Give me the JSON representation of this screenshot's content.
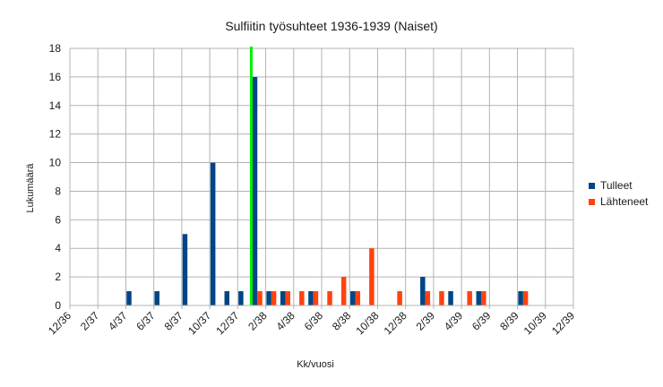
{
  "chart_data": {
    "type": "bar",
    "title": "Sulfiitin työsuhteet 1936-1939 (Naiset)",
    "xlabel": "Kk/vuosi",
    "ylabel": "Lukumäärä",
    "ylim": [
      0,
      18
    ],
    "yticks": [
      0,
      2,
      4,
      6,
      8,
      10,
      12,
      14,
      16,
      18
    ],
    "grid": true,
    "legend_position": "right",
    "x_tick_labels": [
      "12/36",
      "2/37",
      "4/37",
      "6/37",
      "8/37",
      "10/37",
      "12/37",
      "2/38",
      "4/38",
      "6/38",
      "8/38",
      "10/38",
      "12/38",
      "2/39",
      "4/39",
      "6/39",
      "8/39",
      "10/39",
      "12/39"
    ],
    "categories": [
      "12/36",
      "1/37",
      "2/37",
      "3/37",
      "4/37",
      "5/37",
      "6/37",
      "7/37",
      "8/37",
      "9/37",
      "10/37",
      "11/37",
      "12/37",
      "1/38",
      "2/38",
      "3/38",
      "4/38",
      "5/38",
      "6/38",
      "7/38",
      "8/38",
      "9/38",
      "10/38",
      "11/38",
      "12/38",
      "1/39",
      "2/39",
      "3/39",
      "4/39",
      "5/39",
      "6/39",
      "7/39",
      "8/39",
      "9/39",
      "10/39",
      "11/39",
      "12/39"
    ],
    "series": [
      {
        "name": "Tulleet",
        "color": "#004586",
        "values": [
          0,
          0,
          0,
          0,
          1,
          0,
          1,
          0,
          5,
          0,
          10,
          1,
          1,
          16,
          1,
          1,
          0,
          1,
          0,
          0,
          1,
          0,
          0,
          0,
          0,
          2,
          0,
          1,
          0,
          1,
          0,
          0,
          1,
          0,
          0,
          0,
          0
        ]
      },
      {
        "name": "Lähteneet",
        "color": "#ff420e",
        "values": [
          0,
          0,
          0,
          0,
          0,
          0,
          0,
          0,
          0,
          0,
          0,
          0,
          0,
          1,
          1,
          1,
          1,
          1,
          1,
          2,
          1,
          4,
          0,
          1,
          0,
          1,
          1,
          0,
          1,
          1,
          0,
          0,
          1,
          0,
          0,
          0,
          0
        ]
      }
    ],
    "annotations": [
      {
        "type": "vertical-line",
        "x": "1/38",
        "color": "#00ee00"
      }
    ]
  }
}
